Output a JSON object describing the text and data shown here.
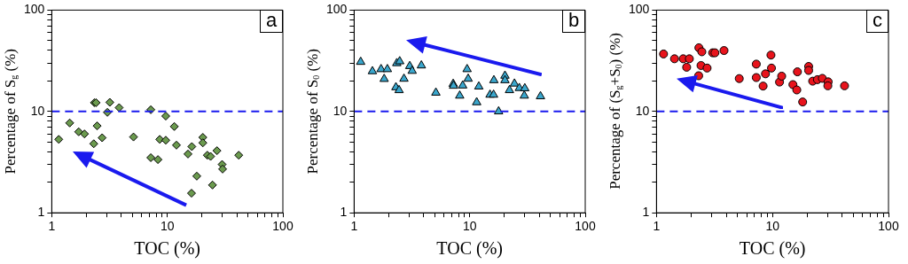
{
  "chart_data": [
    {
      "type": "scatter",
      "xlabel": "TOC (%)",
      "ylabel": "Percentage of S$_{g}$ (%)",
      "annotations": [
        "a"
      ],
      "log": "xy",
      "grid": false,
      "marker": "diamond",
      "color": "#6b9a4e",
      "xlim": [
        1,
        100
      ],
      "ylim": [
        1,
        100
      ],
      "xticks": [
        1,
        {
          "value": 2,
          "label": null
        },
        {
          "value": 3,
          "label": null
        },
        {
          "value": 4,
          "label": null
        },
        {
          "value": 5,
          "label": null
        },
        {
          "value": 6,
          "label": null
        },
        {
          "value": 7,
          "label": null
        },
        {
          "value": 8,
          "label": null
        },
        {
          "value": 9,
          "label": null
        },
        10,
        {
          "value": 20,
          "label": null
        },
        {
          "value": 30,
          "label": null
        },
        {
          "value": 40,
          "label": null
        },
        {
          "value": 50,
          "label": null
        },
        {
          "value": 60,
          "label": null
        },
        {
          "value": 70,
          "label": null
        },
        {
          "value": 80,
          "label": null
        },
        {
          "value": 90,
          "label": null
        },
        100
      ],
      "yticks": [
        1,
        {
          "value": 2,
          "label": null
        },
        {
          "value": 3,
          "label": null
        },
        {
          "value": 4,
          "label": null
        },
        {
          "value": 5,
          "label": null
        },
        {
          "value": 6,
          "label": null
        },
        {
          "value": 7,
          "label": null
        },
        {
          "value": 8,
          "label": null
        },
        {
          "value": 9,
          "label": null
        },
        10,
        {
          "value": 20,
          "label": null
        },
        {
          "value": 30,
          "label": null
        },
        {
          "value": 40,
          "label": null
        },
        {
          "value": 50,
          "label": null
        },
        {
          "value": 60,
          "label": null
        },
        {
          "value": 70,
          "label": null
        },
        {
          "value": 80,
          "label": null
        },
        {
          "value": 90,
          "label": null
        },
        100
      ],
      "x": [
        1.15,
        1.43,
        1.71,
        1.92,
        2.34,
        2.42,
        2.47,
        2.31,
        2.73,
        3.03,
        3.18,
        3.83,
        5.1,
        7.2,
        7.2,
        8.3,
        8.6,
        9.7,
        9.7,
        11.5,
        12,
        15.1,
        16.3,
        16.2,
        18,
        20.3,
        20.3,
        22.2,
        23.7,
        24.6,
        26.9,
        29.8,
        30.1,
        41.5
      ],
      "values": [
        5.3,
        7.7,
        6.3,
        6,
        12.2,
        12.2,
        7.2,
        4.8,
        5.5,
        9.8,
        12.3,
        10.9,
        5.6,
        10.4,
        3.5,
        3.35,
        5.3,
        9,
        5.2,
        7.1,
        4.65,
        3.8,
        4.5,
        1.56,
        2.3,
        5.55,
        4.9,
        3.7,
        3.6,
        1.88,
        4.1,
        3,
        2.7,
        3.7
      ],
      "ref_lines": [
        {
          "axis": "y",
          "value": 10,
          "color": "#1a1aee",
          "line_style": "dashed"
        }
      ]
    },
    {
      "type": "scatter",
      "xlabel": "TOC (%)",
      "ylabel": "Percentage of S$_{0}$ (%)",
      "annotations": [
        "b"
      ],
      "log": "xy",
      "grid": false,
      "marker": "triangle",
      "color": "#3aa6cc",
      "xlim": [
        1,
        100
      ],
      "ylim": [
        1,
        100
      ],
      "xticks": [
        1,
        {
          "value": 2,
          "label": null
        },
        {
          "value": 3,
          "label": null
        },
        {
          "value": 4,
          "label": null
        },
        {
          "value": 5,
          "label": null
        },
        {
          "value": 6,
          "label": null
        },
        {
          "value": 7,
          "label": null
        },
        {
          "value": 8,
          "label": null
        },
        {
          "value": 9,
          "label": null
        },
        10,
        {
          "value": 20,
          "label": null
        },
        {
          "value": 30,
          "label": null
        },
        {
          "value": 40,
          "label": null
        },
        {
          "value": 50,
          "label": null
        },
        {
          "value": 60,
          "label": null
        },
        {
          "value": 70,
          "label": null
        },
        {
          "value": 80,
          "label": null
        },
        {
          "value": 90,
          "label": null
        },
        100
      ],
      "yticks": [
        1,
        {
          "value": 2,
          "label": null
        },
        {
          "value": 3,
          "label": null
        },
        {
          "value": 4,
          "label": null
        },
        {
          "value": 5,
          "label": null
        },
        {
          "value": 6,
          "label": null
        },
        {
          "value": 7,
          "label": null
        },
        {
          "value": 8,
          "label": null
        },
        {
          "value": 9,
          "label": null
        },
        10,
        {
          "value": 20,
          "label": null
        },
        {
          "value": 30,
          "label": null
        },
        {
          "value": 40,
          "label": null
        },
        {
          "value": 50,
          "label": null
        },
        {
          "value": 60,
          "label": null
        },
        {
          "value": 70,
          "label": null
        },
        {
          "value": 80,
          "label": null
        },
        {
          "value": 90,
          "label": null
        },
        100
      ],
      "x": [
        1.14,
        1.44,
        1.71,
        1.94,
        1.82,
        2.3,
        2.34,
        2.45,
        2.48,
        2.7,
        3.03,
        3.18,
        3.82,
        5.1,
        7.2,
        7.25,
        8.2,
        8.7,
        9.5,
        9.7,
        11.5,
        12,
        15,
        16.1,
        16.2,
        17.8,
        20.2,
        20.2,
        22.1,
        24.4,
        26.9,
        30,
        29.7,
        41
      ],
      "values": [
        30.8,
        24.9,
        26.1,
        26.1,
        20.9,
        17.3,
        29.9,
        16.2,
        31.2,
        21,
        28,
        25.1,
        28.4,
        15.3,
        18.7,
        17.9,
        14.3,
        18,
        26.1,
        21,
        12.3,
        17.6,
        14.6,
        14.6,
        20.3,
        10,
        22.5,
        20.3,
        16.2,
        18.8,
        17,
        16.9,
        14.3,
        14.1
      ],
      "ref_lines": [
        {
          "axis": "y",
          "value": 10,
          "color": "#1a1aee",
          "line_style": "dashed"
        }
      ]
    },
    {
      "type": "scatter",
      "xlabel": "TOC (%)",
      "ylabel": "Percentage of (S$_{g}$+S$_{0}$) (%)",
      "annotations": [
        "c"
      ],
      "log": "xy",
      "grid": false,
      "marker": "circle",
      "color": "#e8141c",
      "xlim": [
        1,
        100
      ],
      "ylim": [
        1,
        100
      ],
      "xticks": [
        1,
        {
          "value": 2,
          "label": null
        },
        {
          "value": 3,
          "label": null
        },
        {
          "value": 4,
          "label": null
        },
        {
          "value": 5,
          "label": null
        },
        {
          "value": 6,
          "label": null
        },
        {
          "value": 7,
          "label": null
        },
        {
          "value": 8,
          "label": null
        },
        {
          "value": 9,
          "label": null
        },
        10,
        {
          "value": 20,
          "label": null
        },
        {
          "value": 30,
          "label": null
        },
        {
          "value": 40,
          "label": null
        },
        {
          "value": 50,
          "label": null
        },
        {
          "value": 60,
          "label": null
        },
        {
          "value": 70,
          "label": null
        },
        {
          "value": 80,
          "label": null
        },
        {
          "value": 90,
          "label": null
        },
        100
      ],
      "yticks": [
        1,
        {
          "value": 2,
          "label": null
        },
        {
          "value": 3,
          "label": null
        },
        {
          "value": 4,
          "label": null
        },
        {
          "value": 5,
          "label": null
        },
        {
          "value": 6,
          "label": null
        },
        {
          "value": 7,
          "label": null
        },
        {
          "value": 8,
          "label": null
        },
        {
          "value": 9,
          "label": null
        },
        10,
        {
          "value": 20,
          "label": null
        },
        {
          "value": 30,
          "label": null
        },
        {
          "value": 40,
          "label": null
        },
        {
          "value": 50,
          "label": null
        },
        {
          "value": 60,
          "label": null
        },
        {
          "value": 70,
          "label": null
        },
        {
          "value": 80,
          "label": null
        },
        {
          "value": 90,
          "label": null
        },
        100
      ],
      "x": [
        1.15,
        1.43,
        1.7,
        1.92,
        1.82,
        2.32,
        2.46,
        2.42,
        2.31,
        2.73,
        3.05,
        3.19,
        3.82,
        5.17,
        7.25,
        7.25,
        8.3,
        8.7,
        9.7,
        9.8,
        11.5,
        12,
        15,
        16.4,
        16.2,
        18.2,
        20.5,
        20.5,
        22.2,
        24.4,
        26.9,
        30.2,
        30,
        41.8
      ],
      "values": [
        36.9,
        33.1,
        33.1,
        33.1,
        27.3,
        42.5,
        38.8,
        28.4,
        22.5,
        26.8,
        37.9,
        37.9,
        39.9,
        21.1,
        29.3,
        21.6,
        17.8,
        23.5,
        36,
        26.8,
        19.5,
        22.3,
        18.4,
        24.6,
        16.3,
        12.4,
        27.8,
        25.4,
        19.9,
        20.6,
        21.2,
        19.6,
        17.9,
        17.9
      ],
      "ref_lines": [
        {
          "axis": "y",
          "value": 10,
          "color": "#1a1aee",
          "line_style": "dashed"
        }
      ]
    }
  ]
}
